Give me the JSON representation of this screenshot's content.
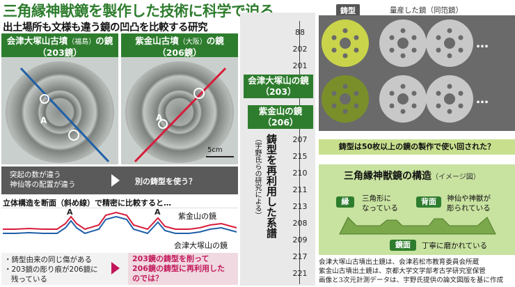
{
  "title": "三角縁神獣鏡を製作した技術に科学で迫る",
  "subtitle": "出土場所も文様も違う鏡の凹凸を比較する研究",
  "left_mirror": {
    "name": "会津大塚山古墳",
    "region": "（福島）",
    "suffix": "の鏡",
    "id": "（203鏡）",
    "marker": "A"
  },
  "right_mirror": {
    "name": "紫金山古墳",
    "region": "（大阪）",
    "suffix": "の鏡",
    "id": "（206鏡）",
    "marker": "A",
    "scale": "5cm"
  },
  "diff_note": {
    "line1": "突起の数が違う",
    "line2": "神仙等の配置が違う",
    "arrow_label": "別の鋳型を使う？"
  },
  "profile": {
    "heading": "立体構造を断面（斜め線）で精密に比較すると…",
    "marker": "A",
    "series": [
      {
        "name": "紫金山の鏡",
        "color": "#d81b3a"
      },
      {
        "name": "会津大塚山の鏡",
        "color": "#1f5fa8"
      }
    ]
  },
  "bottom_note": {
    "line1": "・鋳型由来の同じ傷がある",
    "line2": "・203鏡の彫り痕が206鏡に",
    "line3": "残っている",
    "result1": "203鏡の鋳型を削って",
    "result2": "206鏡の鋳型に再利用した",
    "result3": "のでは？"
  },
  "sequence": {
    "numbers_top": [
      "88",
      "202",
      "201"
    ],
    "label_203": "会津大塚山の鏡",
    "id_203": "（203）",
    "label_206": "紫金山の鏡",
    "id_206": "（206）",
    "numbers_bottom": [
      "207",
      "215",
      "210",
      "211",
      "213",
      "208",
      "209",
      "217",
      "221"
    ],
    "vertical_title": "鋳型を再利用した系譜",
    "vertical_note": "（宇野氏らの研究による）"
  },
  "casting": {
    "mold_label": "鋳型",
    "mass_label": "量産した鏡（同笵鏡）",
    "ellipsis": "…",
    "note": "鋳型は50枚以上の鏡の製作で使い回された？"
  },
  "structure": {
    "title": "三角縁神獣鏡の構造",
    "title_note": "（イメージ図）",
    "rim_tag": "縁",
    "rim_text1": "三角形に",
    "rim_text2": "なっている",
    "back_tag": "背面",
    "back_text1": "神仙や神獣が",
    "back_text2": "彫られている",
    "face_tag": "鏡面",
    "face_text": "丁寧に磨かれている"
  },
  "credit": {
    "line1": "会津大塚山古墳出土鏡は、会津若松市教育委員会所蔵",
    "line2": "紫金山古墳出土鏡は、京都大学文学部考古学研究室保管",
    "line3": "画像と3次元計測データは、宇野氏提供の論文図版を基に作成"
  },
  "colors": {
    "accent": "#2e7d2e",
    "red": "#d81b3a",
    "blue": "#1f5fa8",
    "pink": "#c2185b"
  }
}
